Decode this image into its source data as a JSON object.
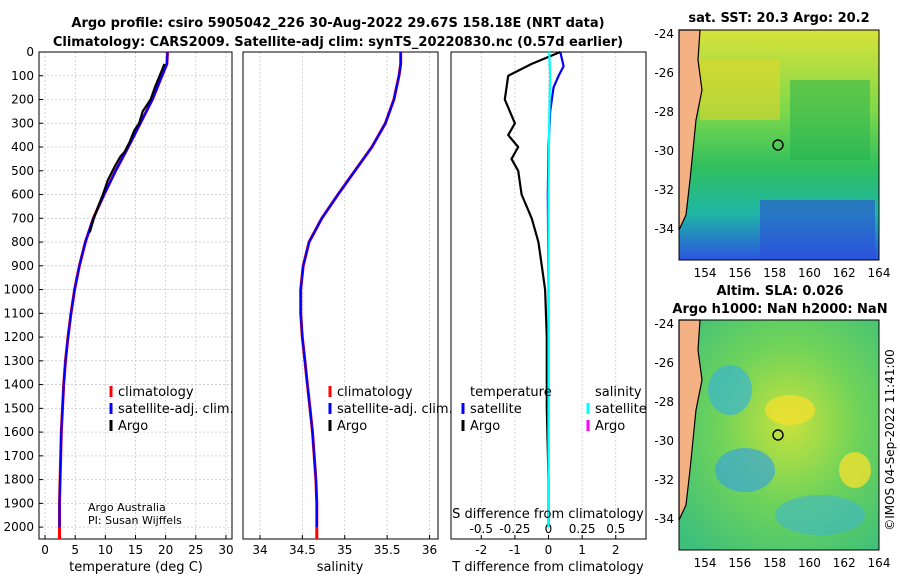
{
  "title_line1": "Argo profile: csiro 5905042_226 30-Aug-2022 29.67S 158.18E (NRT data)",
  "title_line2": "Climatology: CARS2009. Satellite-adj clim: synTS_20220830.nc (0.57d earlier)",
  "sst_title": "sat. SST: 20.3 Argo: 20.2",
  "sla_title_line1": "Altim. SLA: 0.026",
  "sla_title_line2": "Argo h1000: NaN h2000: NaN",
  "credit_line1": "Argo Australia",
  "credit_line2": "PI: Susan Wijffels",
  "timestamp": "©IMOS 04-Sep-2022 11:41:00",
  "colors": {
    "climatology": "#ff0000",
    "satellite": "#0000ff",
    "argo": "#000000",
    "sat_sal": "#00ffff",
    "argo_sal": "#ff00ff"
  },
  "chart_data": [
    {
      "type": "line",
      "title": "",
      "xlabel": "temperature (deg C)",
      "ylabel": "",
      "xlim": [
        -1,
        31
      ],
      "ylim": [
        2050,
        0
      ],
      "xticks": [
        0,
        5,
        10,
        15,
        20,
        25,
        30
      ],
      "xtick_labels": [
        "0",
        "5",
        "10",
        "15",
        "20",
        "25",
        "30"
      ],
      "yticks": [
        0,
        100,
        200,
        300,
        400,
        500,
        600,
        700,
        800,
        900,
        1000,
        1100,
        1200,
        1300,
        1400,
        1500,
        1600,
        1700,
        1800,
        1900,
        2000
      ],
      "legend": [
        "climatology",
        "satellite-adj. clim.",
        "Argo"
      ],
      "series": [
        {
          "name": "climatology",
          "color": "#ff0000",
          "x": [
            20.3,
            20.2,
            19.4,
            17.8,
            15.8,
            13.8,
            11.7,
            9.8,
            8.0,
            6.7,
            5.7,
            4.9,
            4.3,
            3.8,
            3.4,
            3.1,
            2.9,
            2.7,
            2.6,
            2.5,
            2.4,
            2.4
          ],
          "y": [
            0,
            50,
            100,
            200,
            300,
            400,
            500,
            600,
            700,
            800,
            900,
            1000,
            1100,
            1200,
            1300,
            1400,
            1500,
            1600,
            1700,
            1800,
            1900,
            2050
          ]
        },
        {
          "name": "satellite-adj. clim.",
          "color": "#0000ff",
          "x": [
            20.3,
            20.2,
            19.4,
            17.8,
            15.8,
            13.8,
            11.7,
            9.8,
            8.0,
            6.7,
            5.7,
            4.9,
            4.3,
            3.8,
            3.4,
            3.1,
            2.9,
            2.7,
            2.6,
            2.5,
            2.4,
            2.4
          ],
          "y": [
            0,
            50,
            100,
            200,
            300,
            400,
            500,
            600,
            700,
            800,
            900,
            1000,
            1100,
            1200,
            1300,
            1400,
            1500,
            1600,
            1700,
            1800,
            1900,
            2000
          ]
        },
        {
          "name": "Argo",
          "color": "#000000",
          "x": [
            19.8,
            19.5,
            19.0,
            18.2,
            17.5,
            16.2,
            15.6,
            14.8,
            14.0,
            13.2,
            12.5,
            11.6,
            10.4,
            9.6,
            8.8,
            8.1,
            7.4
          ],
          "y": [
            50,
            70,
            100,
            150,
            200,
            250,
            300,
            330,
            380,
            420,
            440,
            480,
            540,
            600,
            650,
            700,
            760
          ]
        }
      ]
    },
    {
      "type": "line",
      "title": "",
      "xlabel": "salinity",
      "ylabel": "",
      "xlim": [
        33.8,
        36.1
      ],
      "ylim": [
        2050,
        0
      ],
      "xticks": [
        34,
        34.5,
        35,
        35.5,
        36
      ],
      "xtick_labels": [
        "34",
        "34.5",
        "35",
        "35.5",
        "36"
      ],
      "legend": [
        "climatology",
        "satellite-adj. clim.",
        "Argo"
      ],
      "series": [
        {
          "name": "climatology",
          "color": "#ff0000",
          "x": [
            35.66,
            35.66,
            35.64,
            35.58,
            35.48,
            35.32,
            35.12,
            34.92,
            34.73,
            34.58,
            34.51,
            34.48,
            34.48,
            34.5,
            34.53,
            34.56,
            34.59,
            34.62,
            34.64,
            34.66,
            34.67,
            34.67
          ],
          "y": [
            0,
            50,
            100,
            200,
            300,
            400,
            500,
            600,
            700,
            800,
            900,
            1000,
            1100,
            1200,
            1300,
            1400,
            1500,
            1600,
            1700,
            1800,
            1900,
            2050
          ]
        },
        {
          "name": "satellite-adj. clim.",
          "color": "#0000ff",
          "x": [
            35.66,
            35.66,
            35.64,
            35.58,
            35.48,
            35.32,
            35.12,
            34.92,
            34.73,
            34.58,
            34.51,
            34.48,
            34.48,
            34.5,
            34.53,
            34.56,
            34.59,
            34.62,
            34.64,
            34.66,
            34.67,
            34.67
          ],
          "y": [
            0,
            50,
            100,
            200,
            300,
            400,
            500,
            600,
            700,
            800,
            900,
            1000,
            1100,
            1200,
            1300,
            1400,
            1500,
            1600,
            1700,
            1800,
            1900,
            2000
          ]
        }
      ]
    },
    {
      "type": "line",
      "title": "",
      "xlabel": "T difference from climatology",
      "ylabel": "",
      "secondary_xlabel": "S difference from climatology",
      "xlim": [
        -2.9,
        2.9
      ],
      "ylim": [
        2050,
        0
      ],
      "xticks": [
        -2,
        -1,
        0,
        1,
        2
      ],
      "xtick_labels": [
        "-2",
        "-1",
        "0",
        "1",
        "2"
      ],
      "secondary_xtick_labels": [
        "-0.5",
        "-0.25",
        "0",
        "0.25",
        "0.5"
      ],
      "legend_temperature": [
        "temperature",
        "satellite",
        "Argo"
      ],
      "legend_salinity": [
        "salinity",
        "satellite",
        "Argo"
      ],
      "series": [
        {
          "name": "temperature satellite",
          "color": "#0000ff",
          "x": [
            0.35,
            0.45,
            0.3,
            0.15,
            0.05,
            0.0,
            -0.02,
            0.0,
            0.0,
            0.0
          ],
          "y": [
            0,
            60,
            100,
            150,
            250,
            400,
            600,
            1000,
            1500,
            2000
          ]
        },
        {
          "name": "temperature Argo",
          "color": "#000000",
          "x": [
            0.35,
            -0.5,
            -1.2,
            -1.3,
            -1.0,
            -1.2,
            -0.9,
            -1.1,
            -0.9,
            -0.8,
            -0.5,
            -0.3,
            -0.2,
            -0.1,
            -0.05,
            -0.05,
            0.0,
            0.0
          ],
          "y": [
            0,
            50,
            100,
            200,
            300,
            350,
            400,
            450,
            500,
            600,
            700,
            800,
            900,
            1000,
            1200,
            1500,
            1800,
            2000
          ]
        },
        {
          "name": "salinity satellite",
          "color": "#00ffff",
          "x": [
            0.02,
            0.05,
            0.02,
            0.0,
            0.0,
            0.0
          ],
          "y": [
            0,
            100,
            300,
            600,
            1200,
            2000
          ]
        }
      ]
    }
  ]
}
